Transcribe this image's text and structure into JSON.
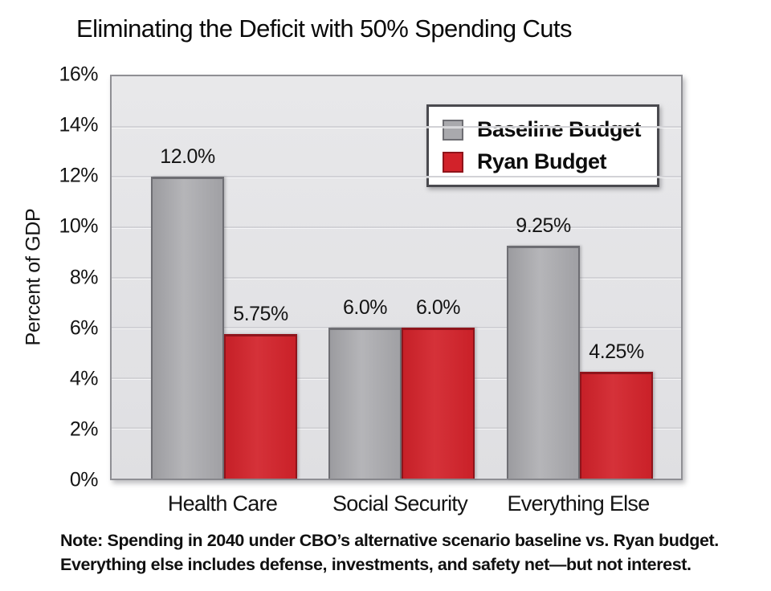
{
  "chart_data": {
    "type": "bar",
    "title": "Eliminating the Deficit with 50% Spending Cuts",
    "xlabel": "",
    "ylabel": "Percent of GDP",
    "ylim": [
      0,
      16
    ],
    "ytick_step": 2,
    "yticks": [
      "16%",
      "14%",
      "12%",
      "10%",
      "8%",
      "6%",
      "4%",
      "2%",
      "0%"
    ],
    "grid": true,
    "legend_position": "top-right",
    "plot_background": "#e3e3e6",
    "categories": [
      "Health Care",
      "Social Security",
      "Everything Else"
    ],
    "series": [
      {
        "name": "Baseline Budget",
        "color": "#a9a9ad",
        "border_color": "#6e6e73",
        "values": [
          12.0,
          6.0,
          9.25
        ],
        "value_labels": [
          "12.0%",
          "6.0%",
          "9.25%"
        ]
      },
      {
        "name": "Ryan Budget",
        "color": "#d2222a",
        "border_color": "#8f141b",
        "values": [
          5.75,
          6.0,
          4.25
        ],
        "value_labels": [
          "5.75%",
          "6.0%",
          "4.25%"
        ]
      }
    ],
    "note": [
      "Note: Spending in 2040 under CBO’s alternative scenario baseline vs. Ryan budget.",
      "Everything else includes defense, investments, and safety net—but not interest."
    ]
  }
}
